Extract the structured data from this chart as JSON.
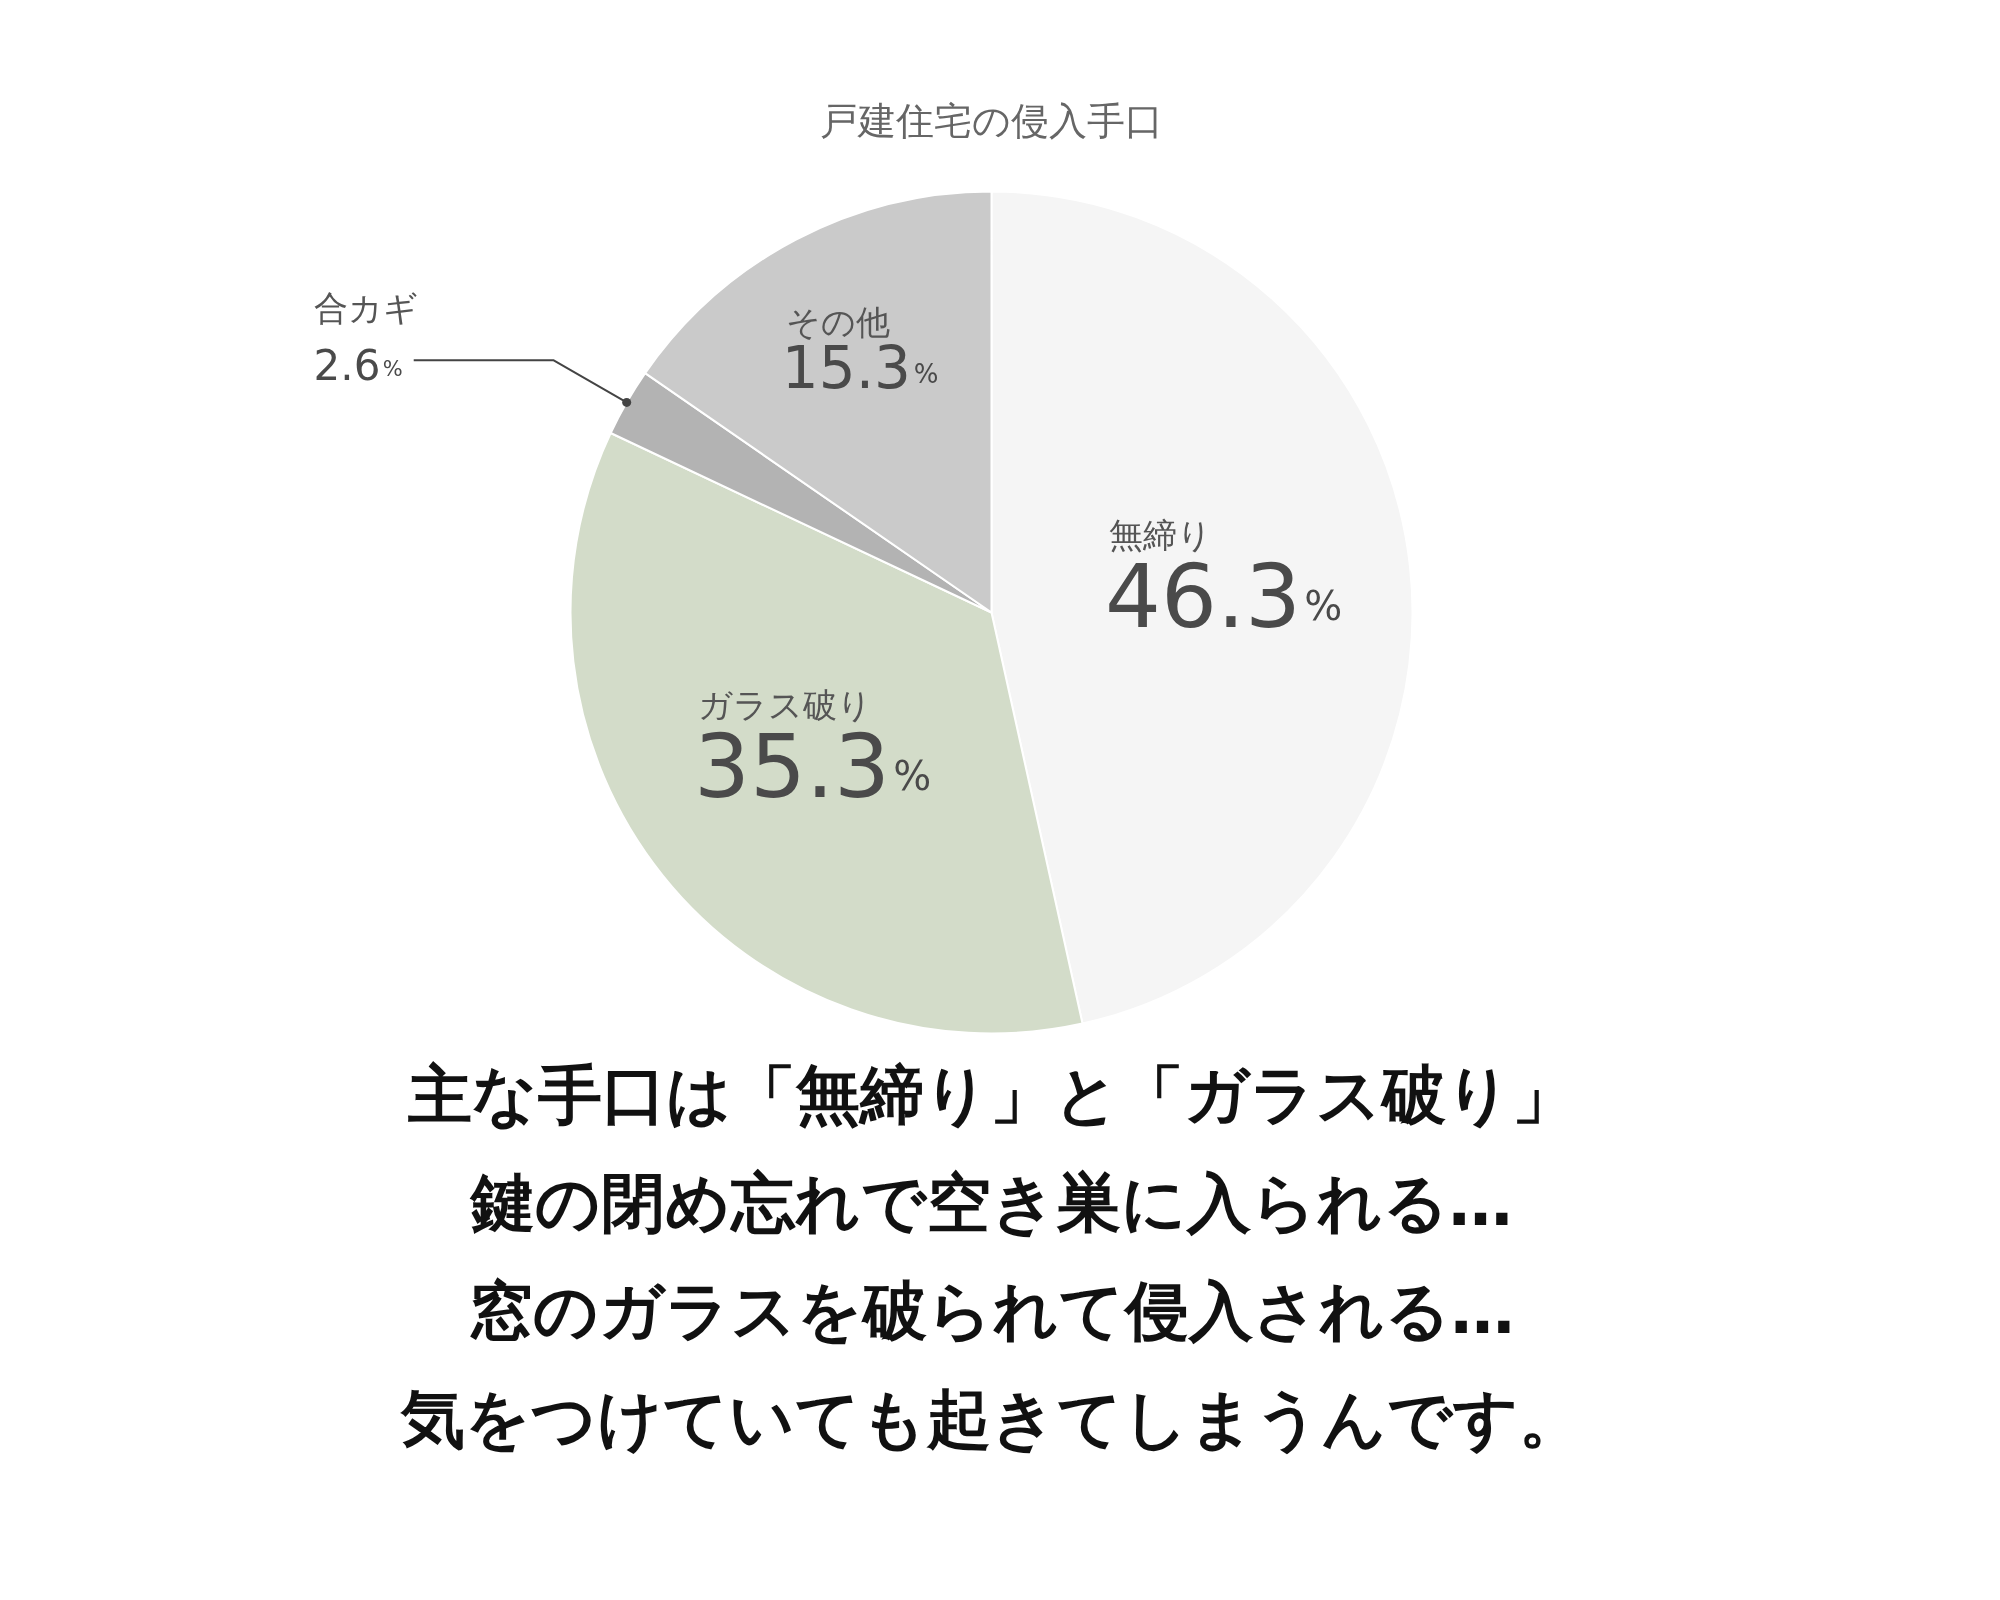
{
  "chart_data": {
    "type": "pie",
    "title": "戸建住宅の侵入手口",
    "categories": [
      "無締り",
      "ガラス破り",
      "合カギ",
      "その他"
    ],
    "values": [
      46.3,
      35.3,
      2.6,
      15.3
    ],
    "colors": [
      "#f5f5f5",
      "#d3dcc9",
      "#b3b3b3",
      "#cacaca"
    ],
    "value_labels": [
      "46.3%",
      "35.3%",
      "2.6%",
      "15.3%"
    ],
    "annotations": [
      "主な手口は「無締り」と「ガラス破り」",
      "鍵の閉め忘れで空き巣に入られる…",
      "窓のガラスを破られて侵入される…",
      "気をつけていても起きてしまうんです。"
    ]
  }
}
